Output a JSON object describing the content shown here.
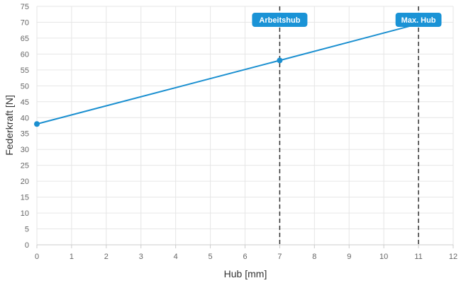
{
  "chart_data": {
    "type": "line",
    "xlabel": "Hub [mm]",
    "ylabel": "Federkraft [N]",
    "xlim": [
      0,
      12
    ],
    "ylim": [
      0,
      75
    ],
    "x_ticks": [
      0,
      1,
      2,
      3,
      4,
      5,
      6,
      7,
      8,
      9,
      10,
      11,
      12
    ],
    "y_ticks": [
      0,
      5,
      10,
      15,
      20,
      25,
      30,
      35,
      40,
      45,
      50,
      55,
      60,
      65,
      70,
      75
    ],
    "grid": true,
    "series": [
      {
        "color": "#1a8fd0",
        "points": [
          {
            "x": 0,
            "y": 38
          },
          {
            "x": 7,
            "y": 58
          },
          {
            "x": 11,
            "y": 69.5
          }
        ]
      }
    ],
    "vertical_markers": [
      {
        "x": 7,
        "label": "Arbeitshub"
      },
      {
        "x": 11,
        "label": "Max. Hub"
      }
    ],
    "colors": {
      "line": "#1a8fd0",
      "marker_bg": "#1a93d6",
      "marker_line": "#333333",
      "grid": "#e6e6e6"
    }
  }
}
